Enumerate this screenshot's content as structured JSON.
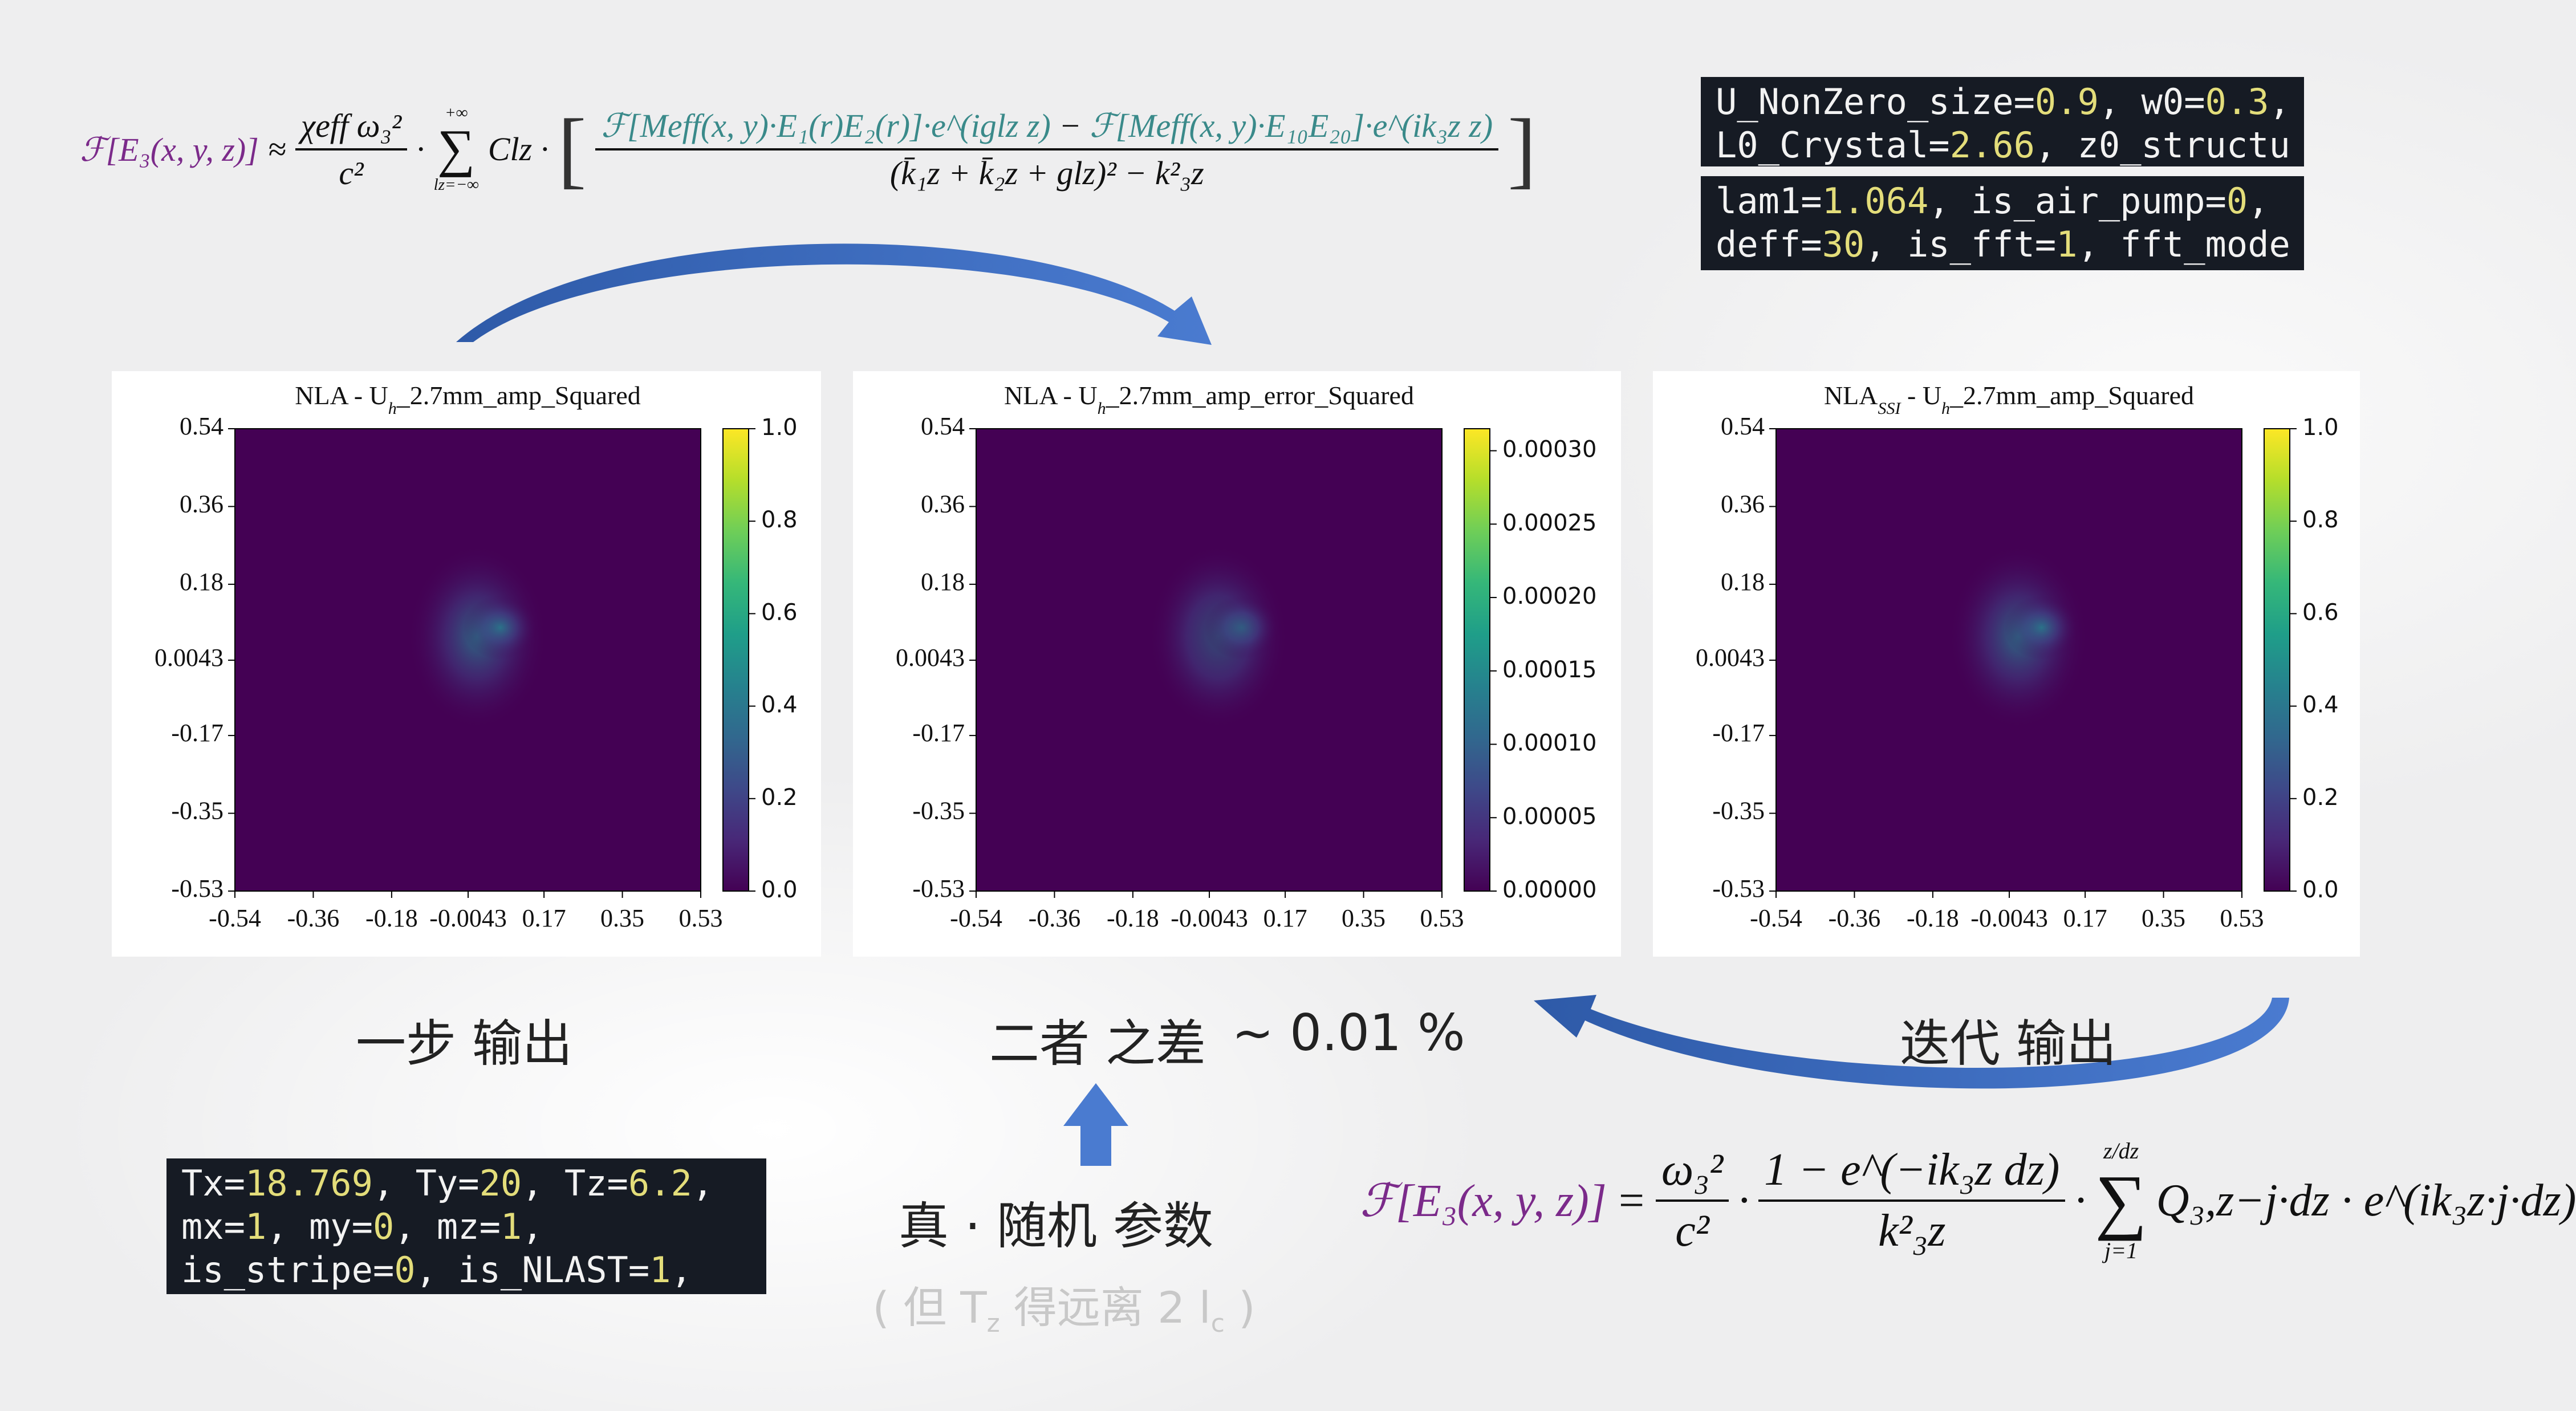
{
  "chart_data": [
    {
      "type": "heatmap",
      "title": [
        "NLA - U",
        "h",
        "_2.7mm_amp_Squared"
      ],
      "colormap": "viridis",
      "xlim": [
        -0.54,
        0.53
      ],
      "ylim": [
        -0.53,
        0.54
      ],
      "xticks": [
        -0.54,
        -0.36,
        -0.18,
        -0.0043,
        0.17,
        0.35,
        0.53
      ],
      "yticks": [
        0.54,
        0.36,
        0.18,
        0.0043,
        -0.17,
        -0.35,
        -0.53
      ],
      "clim": [
        0,
        1
      ],
      "cticks": [
        {
          "value": 0,
          "label": "0.0"
        },
        {
          "value": 0.2,
          "label": "0.2"
        },
        {
          "value": 0.4,
          "label": "0.4"
        },
        {
          "value": 0.6,
          "label": "0.6"
        },
        {
          "value": 0.8,
          "label": "0.8"
        },
        {
          "value": 1,
          "label": "1.0"
        }
      ]
    },
    {
      "type": "heatmap",
      "title": [
        "NLA - U",
        "h",
        "_2.7mm_amp_error_Squared"
      ],
      "colormap": "viridis",
      "xlim": [
        -0.54,
        0.53
      ],
      "ylim": [
        -0.53,
        0.54
      ],
      "xticks": [
        -0.54,
        -0.36,
        -0.18,
        -0.0043,
        0.17,
        0.35,
        0.53
      ],
      "yticks": [
        0.54,
        0.36,
        0.18,
        0.0043,
        -0.17,
        -0.35,
        -0.53
      ],
      "clim": [
        0,
        0.000315
      ],
      "cticks": [
        {
          "value": 0,
          "label": "0.00000"
        },
        {
          "value": 5e-05,
          "label": "0.00005"
        },
        {
          "value": 0.0001,
          "label": "0.00010"
        },
        {
          "value": 0.00015,
          "label": "0.00015"
        },
        {
          "value": 0.0002,
          "label": "0.00020"
        },
        {
          "value": 0.00025,
          "label": "0.00025"
        },
        {
          "value": 0.0003,
          "label": "0.00030"
        }
      ]
    },
    {
      "type": "heatmap",
      "title": [
        "NLA",
        "SSI",
        " - U",
        "h",
        "_2.7mm_amp_Squared"
      ],
      "colormap": "viridis",
      "xlim": [
        -0.54,
        0.53
      ],
      "ylim": [
        -0.53,
        0.54
      ],
      "xticks": [
        -0.54,
        -0.36,
        -0.18,
        -0.0043,
        0.17,
        0.35,
        0.53
      ],
      "yticks": [
        0.54,
        0.36,
        0.18,
        0.0043,
        -0.17,
        -0.35,
        -0.53
      ],
      "clim": [
        0,
        1
      ],
      "cticks": [
        {
          "value": 0,
          "label": "0.0"
        },
        {
          "value": 0.2,
          "label": "0.2"
        },
        {
          "value": 0.4,
          "label": "0.4"
        },
        {
          "value": 0.6,
          "label": "0.6"
        },
        {
          "value": 0.8,
          "label": "0.8"
        },
        {
          "value": 1,
          "label": "1.0"
        }
      ]
    }
  ],
  "formula_top": {
    "lhs": "ℱ[E₃(x, y, z)]",
    "approx": "≈",
    "coef_num": "χeff ω₃²",
    "coef_den": "c²",
    "dot": "·",
    "sum_top": "+∞",
    "sum": "∑",
    "sum_bottom": "lz=−∞",
    "term": "Clz ·",
    "num_a": "ℱ[Meff(x, y)·E₁(r)E₂(r)]·e^(iglz z)",
    "minus": "−",
    "num_b": "ℱ[Meff(x, y)·E₁₀E₂₀]·e^(ik₃z z)",
    "den": "(k̄₁z + k̄₂z + glz)² − k²₃z"
  },
  "formula_bottom": {
    "lhs": "ℱ[E₃(x, y, z)]",
    "eq": "=",
    "a_num": "ω₃²",
    "a_den": "c²",
    "dot1": "·",
    "b_num": "1 − e^(−ik₃z dz)",
    "b_den": "k²₃z",
    "dot2": "·",
    "sum_top": "z/dz",
    "sum": "∑",
    "sum_bottom": "j=1",
    "term": "Q₃,z−j·dz · e^(ik₃z·j·dz)"
  },
  "code_top_1": [
    "U_NonZero_size=0.9, w0=0.3,",
    "L0_Crystal=2.66, z0_structu"
  ],
  "code_top_2": [
    "lam1=1.064, is_air_pump=0,",
    "deff=30, is_fft=1, fft_mode"
  ],
  "code_bottom": [
    "Tx=18.769, Ty=20, Tz=6.2,",
    "mx=1, my=0, mz=1,",
    "is_stripe=0, is_NLAST=1,"
  ],
  "labels": {
    "one_step": "一步 输出",
    "difference": "二者 之差",
    "difference_value": "~ 0.01 %",
    "iterative": "迭代 输出",
    "random_params": "真 · 随机 参数",
    "note": [
      "( 但 T",
      "z",
      " 得远离 2 l",
      "c",
      " )"
    ]
  }
}
